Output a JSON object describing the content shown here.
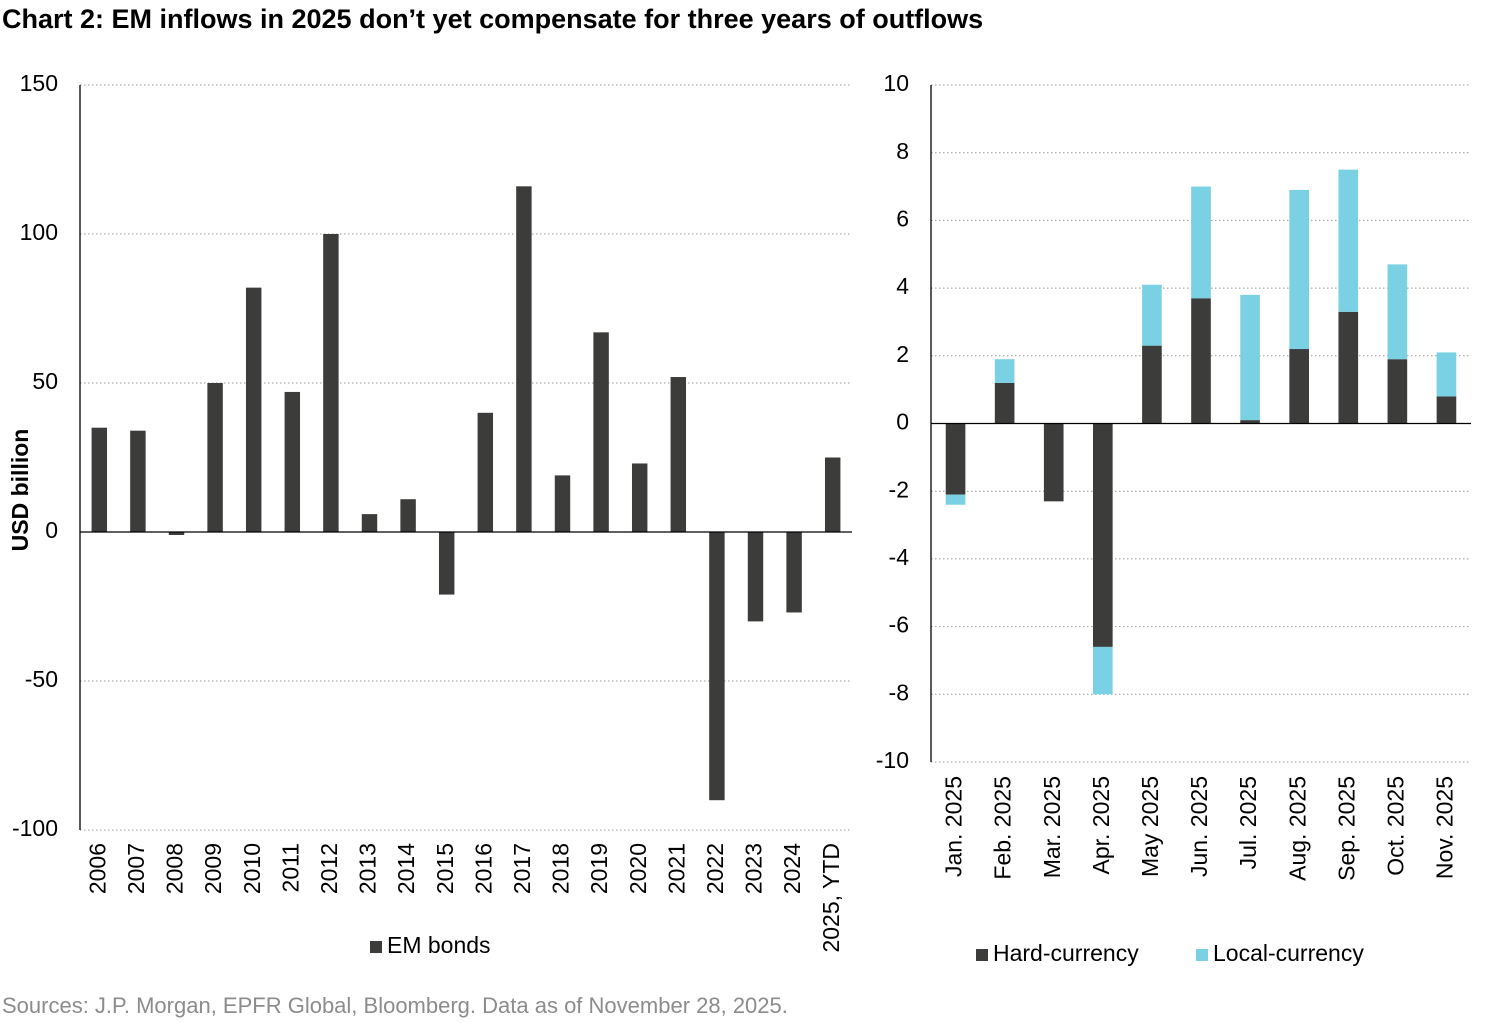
{
  "title": "Chart 2: EM inflows in 2025 don’t yet compensate for three years of outflows",
  "source": "Sources: J.P. Morgan, EPFR Global, Bloomberg. Data as of November 28, 2025.",
  "chart_data": [
    {
      "type": "bar",
      "ylabel": "USD billion",
      "categories": [
        "2006",
        "2007",
        "2008",
        "2009",
        "2010",
        "2011",
        "2012",
        "2013",
        "2014",
        "2015",
        "2016",
        "2017",
        "2018",
        "2019",
        "2020",
        "2021",
        "2022",
        "2023",
        "2024",
        "2025, YTD"
      ],
      "series": [
        {
          "name": "EM bonds",
          "color": "#3c3c3a",
          "values": [
            35,
            34,
            -1,
            50,
            82,
            47,
            100,
            6,
            11,
            -21,
            40,
            116,
            19,
            67,
            23,
            52,
            -90,
            -30,
            -27,
            25
          ]
        }
      ],
      "ylim": [
        -100,
        150
      ],
      "yticks": [
        -100,
        -50,
        0,
        50,
        100,
        150
      ],
      "grid": true
    },
    {
      "type": "bar",
      "stacked": true,
      "categories": [
        "Jan. 2025",
        "Feb. 2025",
        "Mar. 2025",
        "Apr. 2025",
        "May 2025",
        "Jun. 2025",
        "Jul. 2025",
        "Aug. 2025",
        "Sep. 2025",
        "Oct. 2025",
        "Nov. 2025"
      ],
      "series": [
        {
          "name": "Hard-currency",
          "color": "#3c3c3a",
          "values": [
            -2.1,
            1.2,
            -2.3,
            -6.6,
            2.3,
            3.7,
            0.1,
            2.2,
            3.3,
            1.9,
            0.8
          ]
        },
        {
          "name": "Local-currency",
          "color": "#79d1e3",
          "values": [
            -0.3,
            0.7,
            0,
            -1.4,
            1.8,
            3.3,
            3.7,
            4.7,
            4.2,
            2.8,
            1.3
          ]
        }
      ],
      "ylim": [
        -10,
        10
      ],
      "yticks": [
        -10,
        -8,
        -6,
        -4,
        -2,
        0,
        2,
        4,
        6,
        8,
        10
      ],
      "grid": true
    }
  ]
}
